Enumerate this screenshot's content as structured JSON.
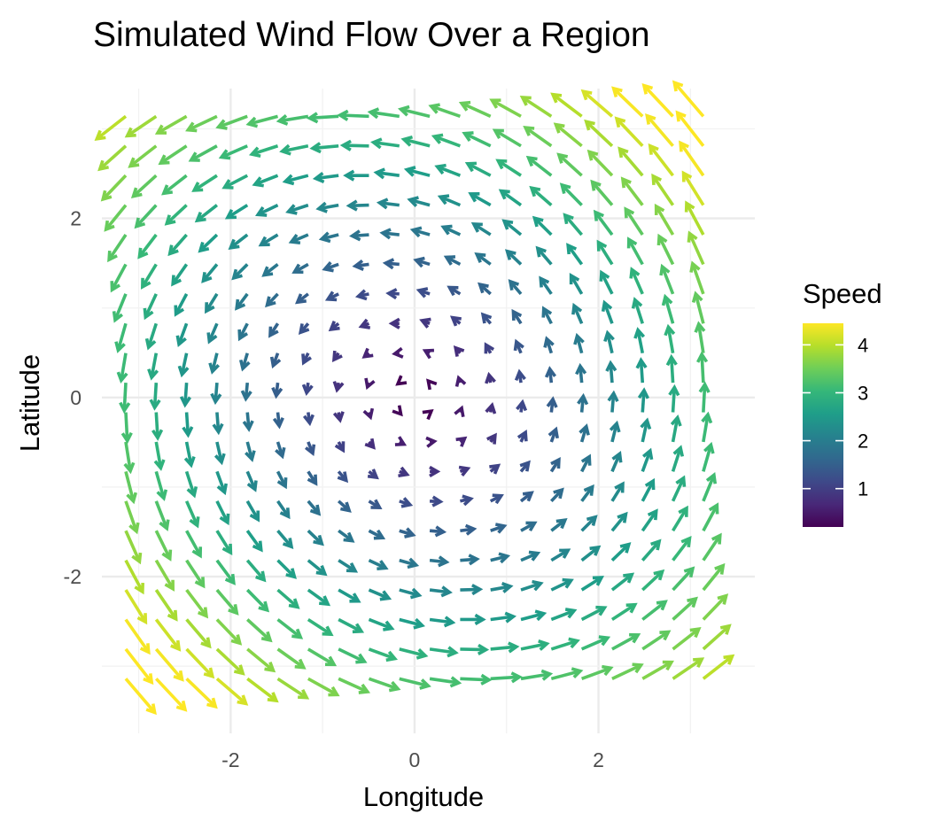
{
  "chart_data": {
    "type": "quiver",
    "title": "Simulated Wind Flow Over a Region",
    "xlabel": "Longitude",
    "ylabel": "Latitude",
    "xlim": [
      -3.4,
      3.7
    ],
    "ylim": [
      -3.75,
      3.45
    ],
    "x_ticks": [
      -2,
      0,
      2
    ],
    "x_tick_labels": [
      "-2",
      "0",
      "2"
    ],
    "y_ticks": [
      -2,
      0,
      2
    ],
    "y_tick_labels": [
      "-2",
      "0",
      "2"
    ],
    "grid": true,
    "grid_x": [
      -3,
      -2,
      -1,
      0,
      1,
      2,
      3
    ],
    "grid_y": [
      -3,
      -2,
      -1,
      0,
      1,
      2,
      3
    ],
    "field": {
      "description": "vector field u = -y, v = x + 0.2*y (approximately), sampled on a regular grid",
      "x_min": -3.14,
      "x_max": 3.14,
      "y_min": -3.14,
      "y_max": 3.14,
      "n": 20,
      "u_formula": "-y",
      "v_formula": "x + 0.2*y",
      "arrow_scale": 0.1
    },
    "legend": {
      "title": "Speed",
      "position": "right",
      "min": 0.2,
      "max": 4.45,
      "ticks": [
        1,
        2,
        3,
        4
      ],
      "tick_labels": [
        "1",
        "2",
        "3",
        "4"
      ],
      "palette": "viridis",
      "colors": [
        "#440154",
        "#482878",
        "#3e4989",
        "#31688e",
        "#26828e",
        "#1f9e89",
        "#35b779",
        "#6ece58",
        "#b5de2b",
        "#fde725"
      ]
    }
  }
}
